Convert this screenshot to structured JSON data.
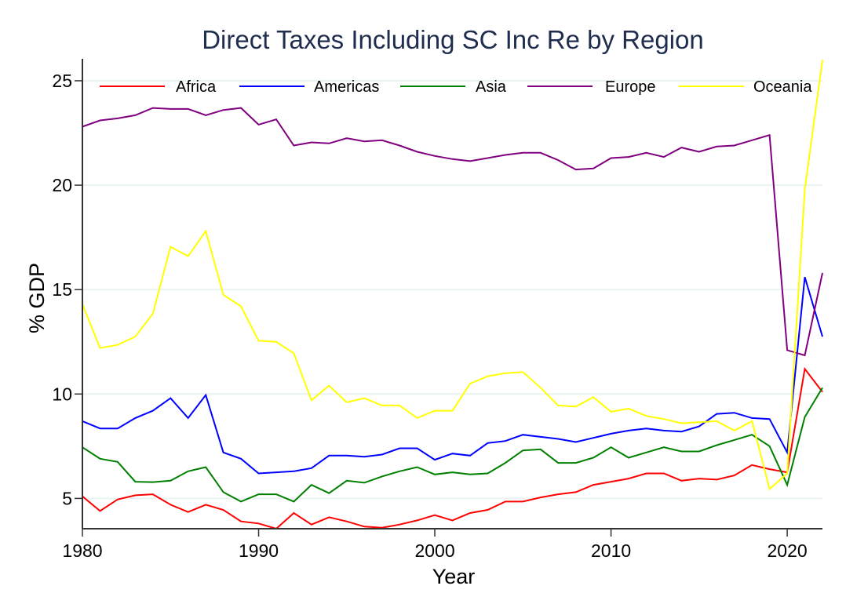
{
  "chart_data": {
    "type": "line",
    "title": "Direct Taxes Including SC Inc Re by Region",
    "xlabel": "Year",
    "ylabel": "% GDP",
    "xlim": [
      1980,
      2022
    ],
    "ylim": [
      3.55,
      26.05
    ],
    "xticks": [
      1980,
      1990,
      2000,
      2010,
      2020
    ],
    "yticks": [
      5,
      10,
      15,
      20,
      25
    ],
    "xtick_labels": [
      "1980",
      "1990",
      "2000",
      "2010",
      "2020"
    ],
    "ytick_labels": [
      "5",
      "10",
      "15",
      "20",
      "25"
    ],
    "grid": "horizontal",
    "legend_position": "top",
    "x": [
      1980,
      1981,
      1982,
      1983,
      1984,
      1985,
      1986,
      1987,
      1988,
      1989,
      1990,
      1991,
      1992,
      1993,
      1994,
      1995,
      1996,
      1997,
      1998,
      1999,
      2000,
      2001,
      2002,
      2003,
      2004,
      2005,
      2006,
      2007,
      2008,
      2009,
      2010,
      2011,
      2012,
      2013,
      2014,
      2015,
      2016,
      2017,
      2018,
      2019,
      2020,
      2021,
      2022
    ],
    "series": [
      {
        "name": "Africa",
        "color": "#ff0000",
        "values": [
          5.1,
          4.4,
          4.95,
          5.15,
          5.2,
          4.7,
          4.35,
          4.7,
          4.45,
          3.9,
          3.8,
          3.55,
          4.3,
          3.75,
          4.1,
          3.9,
          3.65,
          3.6,
          3.75,
          3.95,
          4.2,
          3.95,
          4.3,
          4.45,
          4.85,
          4.85,
          5.05,
          5.2,
          5.3,
          5.65,
          5.8,
          5.95,
          6.2,
          6.2,
          5.85,
          5.95,
          5.9,
          6.1,
          6.6,
          6.4,
          6.25,
          11.2,
          10.1
        ]
      },
      {
        "name": "Americas",
        "color": "#0000ff",
        "values": [
          8.7,
          8.35,
          8.35,
          8.85,
          9.2,
          9.8,
          8.85,
          9.95,
          7.2,
          6.9,
          6.2,
          6.25,
          6.3,
          6.45,
          7.05,
          7.05,
          7.0,
          7.1,
          7.4,
          7.4,
          6.85,
          7.15,
          7.05,
          7.65,
          7.75,
          8.05,
          7.95,
          7.85,
          7.7,
          7.9,
          8.1,
          8.25,
          8.35,
          8.25,
          8.2,
          8.45,
          9.05,
          9.1,
          8.85,
          8.8,
          7.2,
          15.6,
          12.75
        ]
      },
      {
        "name": "Asia",
        "color": "#008000",
        "values": [
          7.45,
          6.9,
          6.75,
          5.8,
          5.78,
          5.85,
          6.3,
          6.5,
          5.3,
          4.85,
          5.2,
          5.2,
          4.85,
          5.65,
          5.25,
          5.85,
          5.75,
          6.05,
          6.3,
          6.5,
          6.15,
          6.25,
          6.15,
          6.2,
          6.7,
          7.3,
          7.35,
          6.7,
          6.7,
          6.95,
          7.45,
          6.95,
          7.2,
          7.45,
          7.25,
          7.25,
          7.55,
          7.8,
          8.05,
          7.5,
          5.65,
          8.9,
          10.3
        ]
      },
      {
        "name": "Europe",
        "color": "#800080",
        "values": [
          22.8,
          23.1,
          23.2,
          23.35,
          23.7,
          23.65,
          23.65,
          23.35,
          23.6,
          23.7,
          22.9,
          23.15,
          21.9,
          22.05,
          22.0,
          22.25,
          22.1,
          22.15,
          21.9,
          21.6,
          21.4,
          21.25,
          21.15,
          21.3,
          21.45,
          21.55,
          21.55,
          21.2,
          20.75,
          20.8,
          21.3,
          21.35,
          21.55,
          21.35,
          21.8,
          21.6,
          21.85,
          21.9,
          22.15,
          22.4,
          12.1,
          11.85,
          15.8
        ]
      },
      {
        "name": "Oceania",
        "color": "#ffff00",
        "values": [
          14.3,
          12.2,
          12.35,
          12.75,
          13.85,
          17.05,
          16.6,
          17.8,
          14.75,
          14.2,
          12.55,
          12.5,
          11.95,
          9.7,
          10.4,
          9.6,
          9.8,
          9.45,
          9.45,
          8.85,
          9.2,
          9.2,
          10.5,
          10.85,
          11.0,
          11.05,
          10.3,
          9.45,
          9.4,
          9.85,
          9.15,
          9.3,
          8.95,
          8.8,
          8.6,
          8.65,
          8.7,
          8.25,
          8.7,
          5.45,
          6.2,
          19.8,
          26.0
        ]
      }
    ]
  }
}
